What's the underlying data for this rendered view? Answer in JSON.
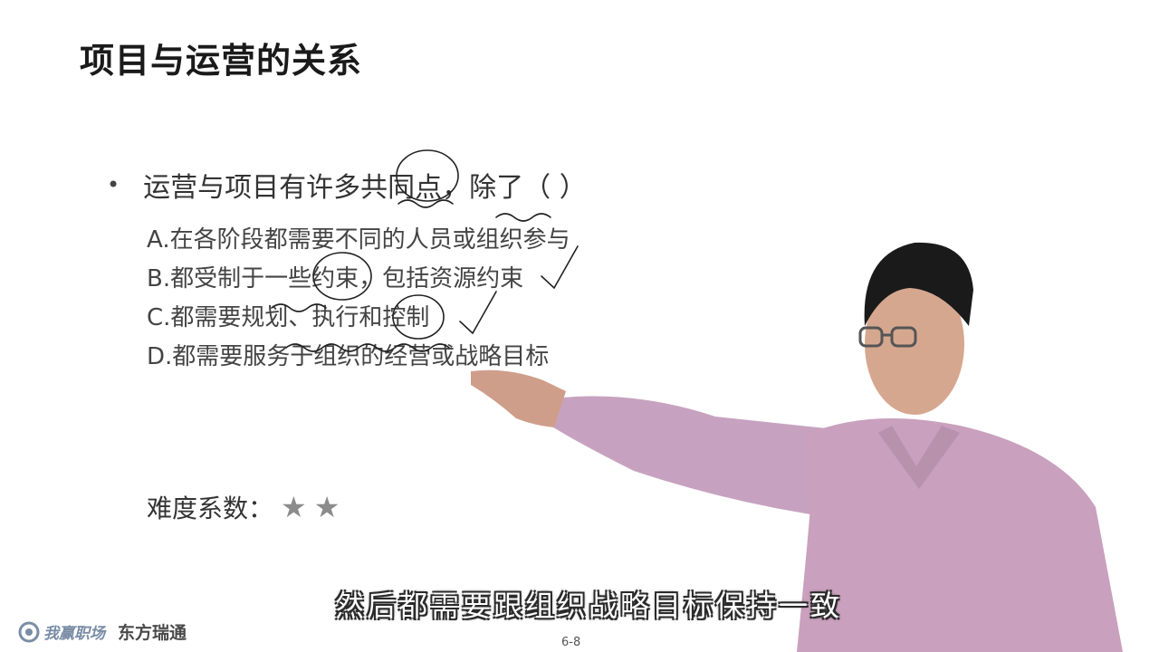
{
  "slide": {
    "title": "项目与运营的关系",
    "question": {
      "bullet": "•",
      "text": "运营与项目有许多共同点，除了（     ）"
    },
    "options": [
      "A.在各阶段都需要不同的人员或组织参与",
      "B.都受制于一些约束，包括资源约束",
      "C.都需要规划、执行和控制",
      "D.都需要服务于组织的经营或战略目标"
    ],
    "difficulty": {
      "label": "难度系数：",
      "stars": 2,
      "star_glyph": "★"
    },
    "page_number": "6-8"
  },
  "subtitle": "然后都需要跟组织战略目标保持一致",
  "footer": {
    "logo_1": "我赢职场",
    "logo_2": "东方瑞通"
  },
  "colors": {
    "annotation_stroke": "#222222",
    "star": "#8c8c8c",
    "shirt": "#c9a0bd",
    "skin": "#d8a890",
    "hair": "#1a1a1a"
  }
}
